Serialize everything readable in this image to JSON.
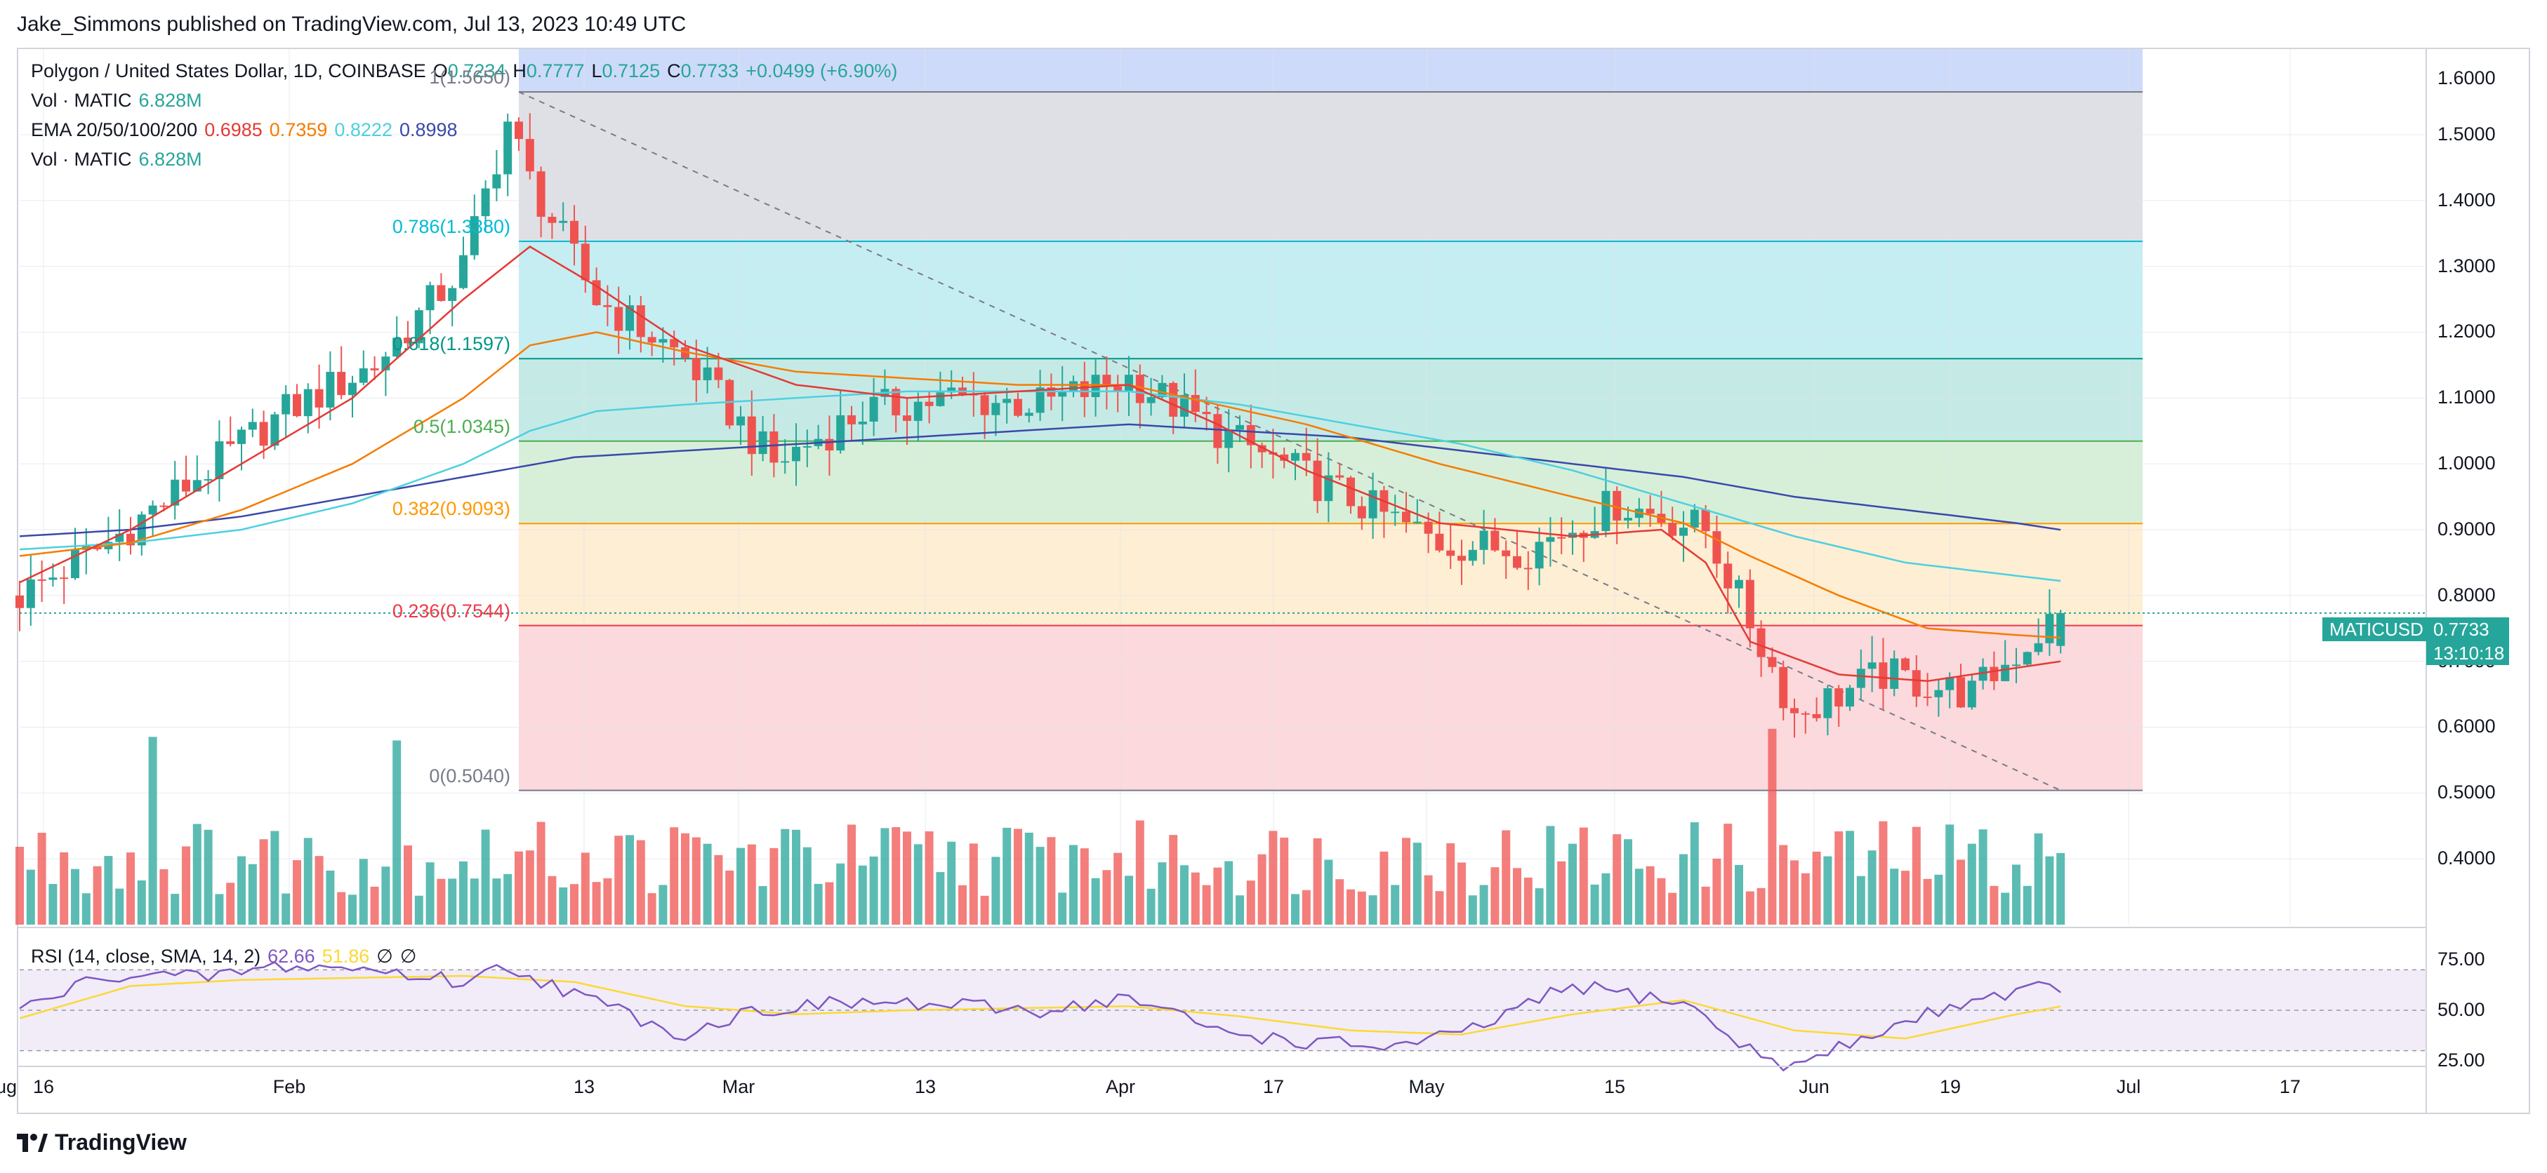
{
  "publisher": "Jake_Simmons published on TradingView.com, Jul 13, 2023 10:49 UTC",
  "footer": {
    "brand": "TradingView"
  },
  "legend": {
    "symbol": "Polygon / United States Dollar, 1D, COINBASE",
    "open_label": "O",
    "open": "0.7234",
    "high_label": "H",
    "high": "0.7777",
    "low_label": "L",
    "low": "0.7125",
    "close_label": "C",
    "close": "0.7733",
    "change": "+0.0499 (+6.90%)",
    "vol_label": "Vol · MATIC",
    "vol_value": "6.828M",
    "ema_label": "EMA 20/50/100/200",
    "ema20": "0.6985",
    "ema50": "0.7359",
    "ema100": "0.8222",
    "ema200": "0.8998",
    "vol2_label": "Vol · MATIC",
    "vol2_value": "6.828M",
    "rsi_label": "RSI (14, close, SMA, 14, 2)",
    "rsi_value": "62.66",
    "rsi_sma": "51.86",
    "rsi_extra1": "∅",
    "rsi_extra2": "∅"
  },
  "price_tag": {
    "symbol": "MATICUSD",
    "price": "0.7733",
    "countdown": "13:10:18"
  },
  "colors": {
    "up": "#26a69a",
    "down": "#ef5350",
    "ema20": "#e53935",
    "ema50": "#f57c00",
    "ema100": "#4dd0e1",
    "ema200": "#3949ab",
    "rsi": "#7e57c2",
    "rsi_sma": "#fdd835"
  },
  "chart_data": {
    "type": "candlestick",
    "title": "Polygon / United States Dollar, 1D, COINBASE",
    "y_axis_ticks": [
      "1.5000",
      "1.4000",
      "1.3000",
      "1.2000",
      "1.1000",
      "1.0000",
      "0.9000",
      "0.8000",
      "0.7000",
      "0.6000",
      "0.5000",
      "0.4000"
    ],
    "y_axis_partial": "1.6000",
    "rsi_ticks": [
      "75.00",
      "50.00",
      "25.00"
    ],
    "x_axis_ticks": [
      "16",
      "Feb",
      "13",
      "Mar",
      "13",
      "Apr",
      "17",
      "May",
      "15",
      "Jun",
      "19",
      "Jul",
      "17",
      "Aug"
    ],
    "ylim": [
      0.3,
      1.63
    ],
    "fib_levels": [
      {
        "ratio": "1",
        "price": 1.565,
        "label": "1(1.5650)",
        "color": "#787b86",
        "band": "#c9ccd4"
      },
      {
        "ratio": "0.786",
        "price": 1.338,
        "label": "0.786(1.3380)",
        "color": "#00bcd4",
        "band": "#9fe3ea"
      },
      {
        "ratio": "0.618",
        "price": 1.1597,
        "label": "0.618(1.1597)",
        "color": "#009688",
        "band": "#9edcd4"
      },
      {
        "ratio": "0.5",
        "price": 1.0345,
        "label": "0.5(1.0345)",
        "color": "#4caf50",
        "band": "#bde5bf"
      },
      {
        "ratio": "0.382",
        "price": 0.9093,
        "label": "0.382(0.9093)",
        "color": "#ff9800",
        "band": "#fde2b5"
      },
      {
        "ratio": "0.236",
        "price": 0.7544,
        "label": "0.236(0.7544)",
        "color": "#f23645",
        "band": "#f8c0c4"
      },
      {
        "ratio": "0",
        "price": 0.504,
        "label": "0(0.5040)",
        "color": "#787b86",
        "band": null
      }
    ],
    "top_band_color": "#c6d3f8",
    "trendline": {
      "from": {
        "day": 45,
        "price": 1.565
      },
      "to": {
        "day": 184,
        "price": 0.504
      }
    },
    "series": [
      {
        "name": "price_close",
        "days": [
          0,
          8,
          16,
          24,
          32,
          40,
          44,
          46,
          52,
          60,
          68,
          76,
          84,
          92,
          100,
          108,
          116,
          128,
          136,
          144,
          152,
          160,
          168,
          176,
          184
        ],
        "values": [
          0.8,
          0.88,
          0.98,
          1.08,
          1.15,
          1.3,
          1.52,
          1.43,
          1.25,
          1.16,
          1.0,
          1.08,
          1.1,
          1.09,
          1.13,
          1.05,
          0.98,
          0.88,
          0.87,
          0.94,
          0.9,
          0.62,
          0.68,
          0.65,
          0.7733
        ]
      },
      {
        "name": "EMA20",
        "days": [
          0,
          10,
          20,
          30,
          40,
          46,
          52,
          60,
          70,
          80,
          90,
          100,
          108,
          116,
          128,
          140,
          148,
          152,
          156,
          164,
          172,
          180,
          184
        ],
        "values": [
          0.82,
          0.9,
          1.0,
          1.1,
          1.25,
          1.33,
          1.27,
          1.18,
          1.12,
          1.1,
          1.11,
          1.12,
          1.06,
          0.99,
          0.91,
          0.89,
          0.9,
          0.85,
          0.73,
          0.68,
          0.67,
          0.69,
          0.7
        ]
      },
      {
        "name": "EMA50",
        "days": [
          0,
          10,
          20,
          30,
          40,
          46,
          52,
          60,
          70,
          80,
          90,
          100,
          108,
          116,
          128,
          140,
          150,
          156,
          164,
          172,
          180,
          184
        ],
        "values": [
          0.86,
          0.88,
          0.93,
          1.0,
          1.1,
          1.18,
          1.2,
          1.17,
          1.14,
          1.13,
          1.12,
          1.12,
          1.09,
          1.06,
          1.0,
          0.95,
          0.91,
          0.86,
          0.8,
          0.75,
          0.74,
          0.7359
        ]
      },
      {
        "name": "EMA100",
        "days": [
          0,
          10,
          20,
          30,
          40,
          46,
          52,
          60,
          70,
          80,
          90,
          100,
          110,
          120,
          130,
          140,
          150,
          160,
          170,
          180,
          184
        ],
        "values": [
          0.87,
          0.88,
          0.9,
          0.94,
          1.0,
          1.05,
          1.08,
          1.09,
          1.1,
          1.11,
          1.11,
          1.11,
          1.09,
          1.06,
          1.03,
          0.99,
          0.94,
          0.89,
          0.85,
          0.83,
          0.8222
        ]
      },
      {
        "name": "EMA200",
        "days": [
          0,
          10,
          20,
          30,
          40,
          50,
          60,
          70,
          80,
          90,
          100,
          110,
          120,
          130,
          140,
          150,
          160,
          170,
          180,
          184
        ],
        "values": [
          0.89,
          0.9,
          0.92,
          0.95,
          0.98,
          1.01,
          1.02,
          1.03,
          1.04,
          1.05,
          1.06,
          1.05,
          1.04,
          1.02,
          1.0,
          0.98,
          0.95,
          0.93,
          0.91,
          0.8998
        ]
      },
      {
        "name": "RSI",
        "days": [
          0,
          8,
          16,
          24,
          32,
          40,
          44,
          50,
          60,
          66,
          76,
          84,
          92,
          100,
          108,
          116,
          124,
          130,
          140,
          150,
          156,
          160,
          168,
          176,
          184
        ],
        "values": [
          50,
          68,
          66,
          72,
          70,
          64,
          72,
          58,
          38,
          50,
          54,
          52,
          50,
          56,
          40,
          34,
          32,
          38,
          62,
          54,
          30,
          22,
          40,
          56,
          62.66
        ]
      },
      {
        "name": "RSI_SMA",
        "days": [
          0,
          10,
          20,
          30,
          40,
          50,
          60,
          70,
          80,
          90,
          100,
          110,
          120,
          130,
          140,
          150,
          160,
          170,
          180,
          184
        ],
        "values": [
          46,
          62,
          65,
          66,
          67,
          64,
          52,
          48,
          50,
          51,
          52,
          47,
          40,
          38,
          48,
          55,
          40,
          36,
          48,
          51.86
        ]
      }
    ]
  }
}
